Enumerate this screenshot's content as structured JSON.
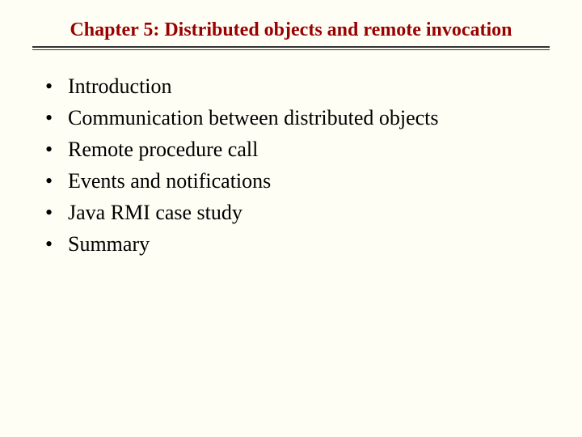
{
  "slide": {
    "title": "Chapter 5: Distributed objects and remote invocation",
    "title_color": "#990000",
    "title_fontsize": 24,
    "background_color": "#fffef5",
    "body_text_color": "#000000",
    "body_fontsize": 26,
    "divider_color": "#333333",
    "bullets": [
      {
        "text": "Introduction"
      },
      {
        "text": "Communication between distributed objects"
      },
      {
        "text": "Remote procedure call"
      },
      {
        "text": "Events and notifications"
      },
      {
        "text": "Java RMI case study"
      },
      {
        "text": "Summary"
      }
    ]
  }
}
